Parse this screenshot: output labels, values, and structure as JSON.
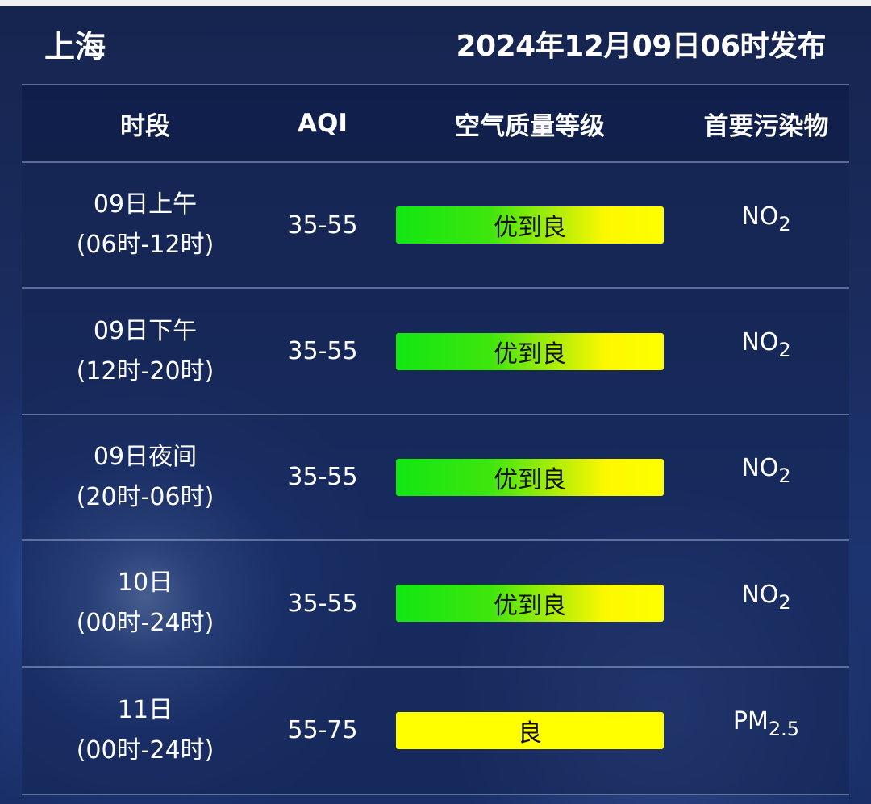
{
  "header": {
    "city": "上海",
    "publish_time": "2024年12月09日06时发布"
  },
  "table": {
    "columns": [
      "时段",
      "AQI",
      "空气质量等级",
      "首要污染物"
    ],
    "rows": [
      {
        "day": "09日上午",
        "range": "(06时-12时)",
        "aqi": "35-55",
        "level": "优到良",
        "level_style": "gradient",
        "pollutant_main": "NO",
        "pollutant_sub": "2"
      },
      {
        "day": "09日下午",
        "range": "(12时-20时)",
        "aqi": "35-55",
        "level": "优到良",
        "level_style": "gradient",
        "pollutant_main": "NO",
        "pollutant_sub": "2"
      },
      {
        "day": "09日夜间",
        "range": "(20时-06时)",
        "aqi": "35-55",
        "level": "优到良",
        "level_style": "gradient",
        "pollutant_main": "NO",
        "pollutant_sub": "2"
      },
      {
        "day": "10日",
        "range": "(00时-24时)",
        "aqi": "35-55",
        "level": "优到良",
        "level_style": "gradient",
        "pollutant_main": "NO",
        "pollutant_sub": "2"
      },
      {
        "day": "11日",
        "range": "(00时-24时)",
        "aqi": "55-75",
        "level": "良",
        "level_style": "yellow",
        "pollutant_main": "PM",
        "pollutant_sub": "2.5"
      }
    ]
  },
  "colors": {
    "excellent_green": "#12e612",
    "good_yellow": "#ffff00",
    "background": "#1a2b5c"
  }
}
